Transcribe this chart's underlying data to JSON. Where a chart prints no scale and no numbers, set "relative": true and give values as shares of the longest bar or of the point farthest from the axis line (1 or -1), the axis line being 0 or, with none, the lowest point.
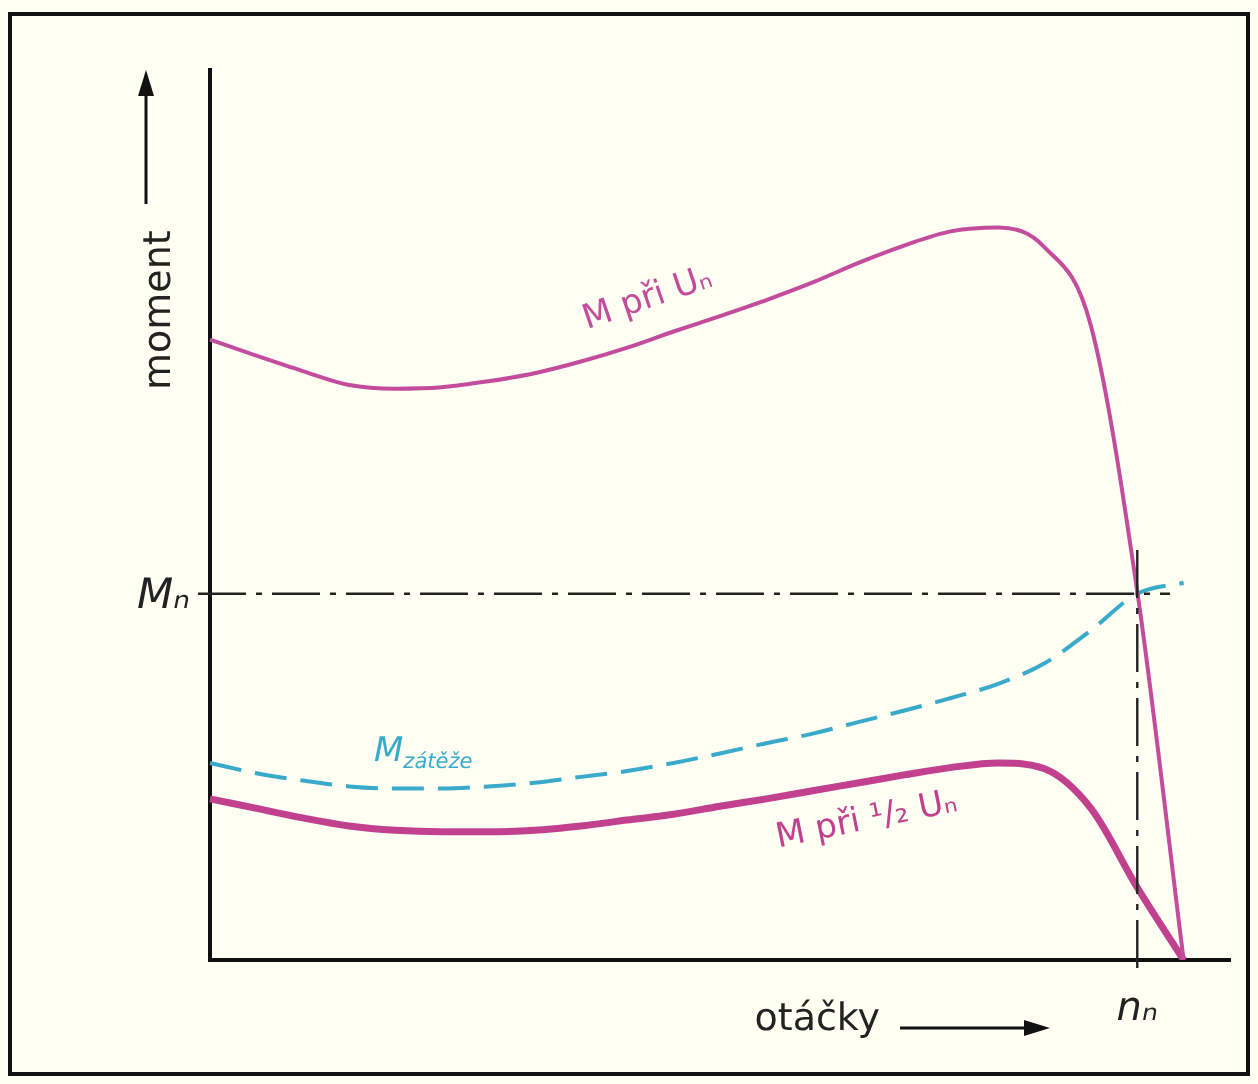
{
  "chart_data": {
    "type": "line",
    "relative": true,
    "xlabel": "otáčky",
    "ylabel": "moment",
    "legend": false,
    "grid": false,
    "marker": "none",
    "categories": [
      null,
      null,
      null,
      null,
      null,
      null,
      null,
      null,
      null,
      null,
      null,
      null,
      null,
      null,
      null,
      null,
      null,
      null,
      null,
      null,
      null,
      null,
      null
    ],
    "series": [
      {
        "name": "M při Uₙ",
        "color": "#c44c9c",
        "line_style": "solid",
        "values": [
          0.847,
          0.825,
          0.804,
          0.785,
          0.78,
          0.782,
          0.79,
          0.801,
          0.817,
          0.836,
          0.858,
          0.879,
          0.901,
          0.925,
          0.952,
          0.976,
          0.995,
          1,
          0.973,
          0.866,
          0.503,
          0,
          null
        ]
      },
      {
        "name": "M$_{zátěže}$",
        "color": "#3aaacb",
        "line_style": "dashed",
        "values": [
          0.269,
          0.255,
          0.245,
          0.237,
          0.234,
          0.234,
          0.237,
          0.242,
          0.25,
          0.258,
          0.269,
          0.282,
          0.296,
          0.309,
          0.325,
          0.341,
          0.358,
          0.377,
          0.405,
          0.45,
          0.5,
          0.515,
          null
        ]
      },
      {
        "name": "M při ¹/₂ Uₙ",
        "color": "#c2418e",
        "line_style": "solid",
        "values": [
          0.22,
          0.207,
          0.194,
          0.183,
          0.177,
          0.175,
          0.175,
          0.177,
          0.183,
          0.191,
          0.199,
          0.21,
          0.22,
          0.231,
          0.242,
          0.253,
          0.263,
          0.269,
          0.261,
          0.207,
          0.099,
          0,
          null
        ]
      }
    ],
    "ref_lines": [
      {
        "axis": "y",
        "value": 0.5,
        "label": "Mₙ",
        "color": "#222222",
        "line_style": "dashdot"
      }
    ],
    "annotations": [
      "nₙ"
    ]
  }
}
